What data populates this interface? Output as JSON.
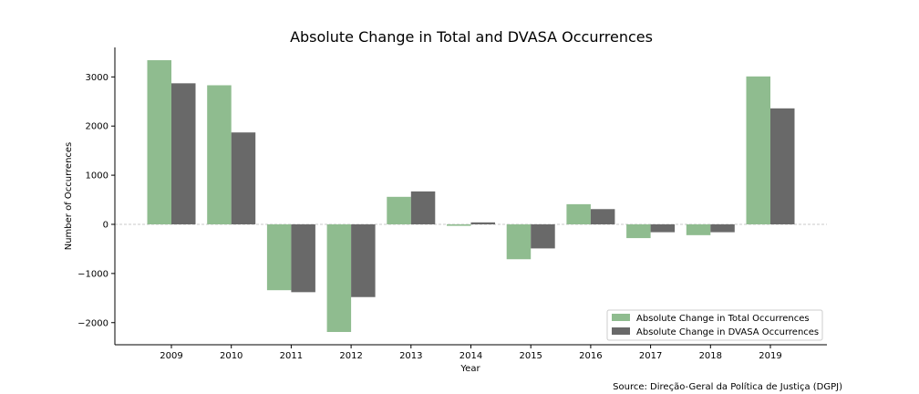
{
  "chart_data": {
    "type": "bar",
    "title": "Absolute Change in Total and DVASA Occurrences",
    "xlabel": "Year",
    "ylabel": "Number of Occurrences",
    "categories": [
      "2009",
      "2010",
      "2011",
      "2012",
      "2013",
      "2014",
      "2015",
      "2016",
      "2017",
      "2018",
      "2019"
    ],
    "series": [
      {
        "name": "Absolute Change in Total Occurrences",
        "color": "#8fbc8f",
        "values": [
          3340,
          2830,
          -1340,
          -2190,
          560,
          -30,
          -710,
          410,
          -280,
          -220,
          3010
        ]
      },
      {
        "name": "Absolute Change in DVASA Occurrences",
        "color": "#696969",
        "values": [
          2870,
          1870,
          -1380,
          -1480,
          670,
          40,
          -490,
          310,
          -160,
          -160,
          2360
        ]
      }
    ],
    "ylim": [
      -2450,
      3600
    ],
    "yticks": [
      3000,
      2000,
      1000,
      0,
      -1000,
      -2000
    ],
    "ytick_labels": [
      "3000",
      "2000",
      "1000",
      "0",
      "−1000",
      "−2000"
    ],
    "zero_line": true,
    "grid": false,
    "legend_position": "lower-right"
  },
  "source_note": "Source: Direção-Geral da Política de Justiça (DGPJ)"
}
